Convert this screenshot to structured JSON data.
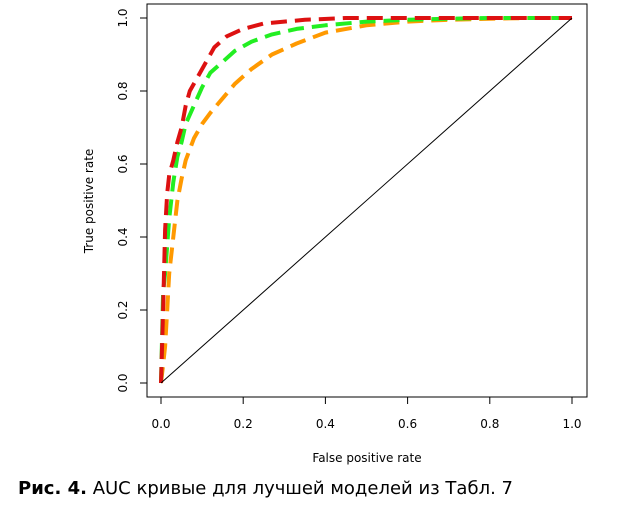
{
  "caption": {
    "label": "Рис. 4.",
    "text": "AUC кривые для лучшей моделей из Табл. 7"
  },
  "chart_data": {
    "type": "line",
    "xlabel": "False positive rate",
    "ylabel": "True positive rate",
    "xlim": [
      0,
      1
    ],
    "ylim": [
      0,
      1
    ],
    "x_ticks": [
      "0.0",
      "0.2",
      "0.4",
      "0.6",
      "0.8",
      "1.0"
    ],
    "y_ticks": [
      "0.0",
      "0.2",
      "0.4",
      "0.6",
      "0.8",
      "1.0"
    ],
    "grid": false,
    "legend": "none",
    "series": [
      {
        "color": "#ff9900",
        "dash": "dashed",
        "points": [
          [
            0,
            0
          ],
          [
            0.005,
            0.05
          ],
          [
            0.01,
            0.1
          ],
          [
            0.015,
            0.2
          ],
          [
            0.02,
            0.3
          ],
          [
            0.03,
            0.4
          ],
          [
            0.04,
            0.5
          ],
          [
            0.05,
            0.56
          ],
          [
            0.06,
            0.61
          ],
          [
            0.08,
            0.67
          ],
          [
            0.1,
            0.71
          ],
          [
            0.12,
            0.74
          ],
          [
            0.15,
            0.78
          ],
          [
            0.18,
            0.82
          ],
          [
            0.22,
            0.86
          ],
          [
            0.27,
            0.9
          ],
          [
            0.33,
            0.93
          ],
          [
            0.4,
            0.96
          ],
          [
            0.5,
            0.98
          ],
          [
            0.6,
            0.99
          ],
          [
            0.7,
            0.995
          ],
          [
            0.8,
            0.998
          ],
          [
            0.9,
            1.0
          ],
          [
            1.0,
            1.0
          ]
        ]
      },
      {
        "color": "#22ee22",
        "dash": "dashed",
        "points": [
          [
            0,
            0
          ],
          [
            0.005,
            0.25
          ],
          [
            0.01,
            0.3
          ],
          [
            0.02,
            0.45
          ],
          [
            0.03,
            0.55
          ],
          [
            0.04,
            0.62
          ],
          [
            0.05,
            0.66
          ],
          [
            0.06,
            0.71
          ],
          [
            0.08,
            0.76
          ],
          [
            0.1,
            0.81
          ],
          [
            0.12,
            0.85
          ],
          [
            0.15,
            0.88
          ],
          [
            0.18,
            0.91
          ],
          [
            0.22,
            0.935
          ],
          [
            0.27,
            0.955
          ],
          [
            0.33,
            0.97
          ],
          [
            0.4,
            0.98
          ],
          [
            0.5,
            0.99
          ],
          [
            0.6,
            0.995
          ],
          [
            0.7,
            0.998
          ],
          [
            0.8,
            1.0
          ],
          [
            0.9,
            1.0
          ],
          [
            1.0,
            1.0
          ]
        ]
      },
      {
        "color": "#dd1111",
        "dash": "dashed",
        "points": [
          [
            0,
            0
          ],
          [
            0.005,
            0.2
          ],
          [
            0.01,
            0.42
          ],
          [
            0.015,
            0.52
          ],
          [
            0.02,
            0.57
          ],
          [
            0.03,
            0.61
          ],
          [
            0.04,
            0.66
          ],
          [
            0.05,
            0.7
          ],
          [
            0.06,
            0.76
          ],
          [
            0.07,
            0.8
          ],
          [
            0.09,
            0.84
          ],
          [
            0.11,
            0.88
          ],
          [
            0.13,
            0.92
          ],
          [
            0.16,
            0.95
          ],
          [
            0.2,
            0.97
          ],
          [
            0.25,
            0.985
          ],
          [
            0.35,
            0.995
          ],
          [
            0.45,
            1.0
          ],
          [
            0.6,
            1.0
          ],
          [
            0.8,
            1.0
          ],
          [
            1.0,
            1.0
          ]
        ]
      },
      {
        "color": "#000000",
        "dash": "solid",
        "points": [
          [
            0,
            0
          ],
          [
            1,
            1
          ]
        ]
      }
    ]
  }
}
